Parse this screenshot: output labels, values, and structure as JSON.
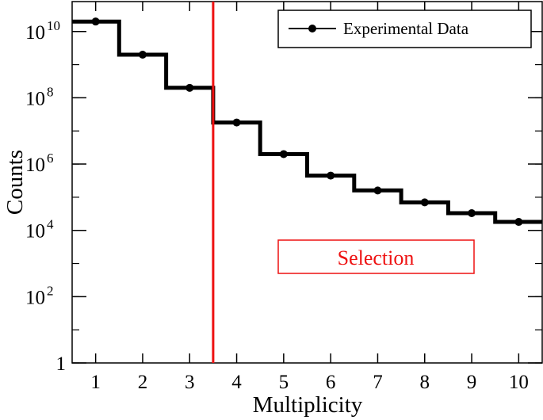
{
  "chart_data": {
    "type": "line",
    "style": "step histogram with markers",
    "x": [
      1,
      2,
      3,
      4,
      5,
      6,
      7,
      8,
      9,
      10
    ],
    "series": [
      {
        "name": "Experimental Data",
        "values": [
          20000000000,
          2000000000,
          200000000,
          18000000,
          2000000,
          450000,
          160000,
          70000,
          33000,
          18000
        ],
        "color": "#000000"
      }
    ],
    "xlabel": "Multiplicity",
    "ylabel": "Counts",
    "xlim": [
      0.5,
      10.5
    ],
    "ylim": [
      1,
      80000000000
    ],
    "yscale": "log",
    "x_ticks": [
      "1",
      "2",
      "3",
      "4",
      "5",
      "6",
      "7",
      "8",
      "9",
      "10"
    ],
    "y_ticks": [
      {
        "value": 1,
        "base": "1",
        "exp": ""
      },
      {
        "value": 100,
        "base": "10",
        "exp": "2"
      },
      {
        "value": 10000,
        "base": "10",
        "exp": "4"
      },
      {
        "value": 1000000,
        "base": "10",
        "exp": "6"
      },
      {
        "value": 100000000,
        "base": "10",
        "exp": "8"
      },
      {
        "value": 10000000000,
        "base": "10",
        "exp": "10"
      }
    ],
    "selection_cut": {
      "x": 3.5,
      "color": "#ee1111"
    },
    "annotation": {
      "text": "Selection",
      "color": "#ee1111"
    },
    "legend": {
      "position": "top-right",
      "label": "Experimental Data"
    },
    "grid": false
  }
}
